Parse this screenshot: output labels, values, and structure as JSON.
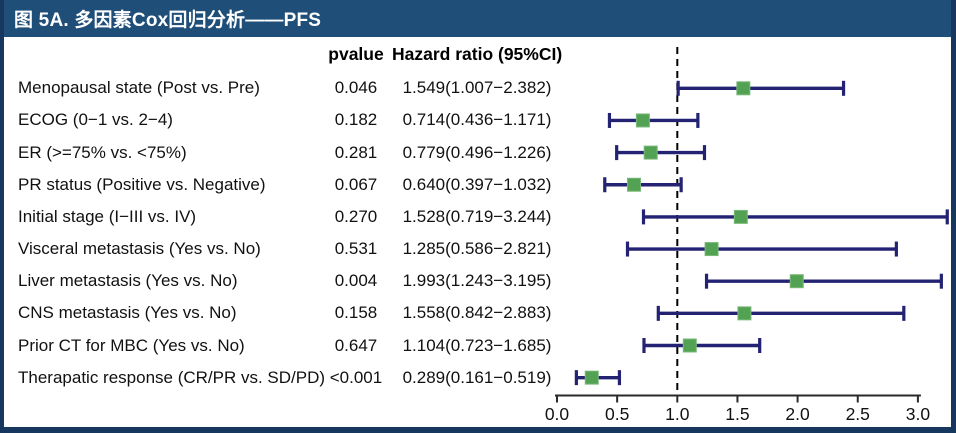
{
  "figure": {
    "title": "图 5A. 多因素Cox回归分析——PFS"
  },
  "table": {
    "col_pvalue": "pvalue",
    "col_hazard": "Hazard ratio (95%CI)",
    "rows": [
      {
        "label": "Menopausal state (Post vs. Pre)",
        "pvalue": "0.046",
        "hr_text": "1.549(1.007−2.382)"
      },
      {
        "label": "ECOG (0−1 vs. 2−4)",
        "pvalue": "0.182",
        "hr_text": "0.714(0.436−1.171)"
      },
      {
        "label": "ER (>=75% vs. <75%)",
        "pvalue": "0.281",
        "hr_text": "0.779(0.496−1.226)"
      },
      {
        "label": "PR status (Positive vs. Negative)",
        "pvalue": "0.067",
        "hr_text": "0.640(0.397−1.032)"
      },
      {
        "label": "Initial stage (I−III vs. IV)",
        "pvalue": "0.270",
        "hr_text": "1.528(0.719−3.244)"
      },
      {
        "label": "Visceral metastasis (Yes vs. No)",
        "pvalue": "0.531",
        "hr_text": "1.285(0.586−2.821)"
      },
      {
        "label": "Liver metastasis (Yes vs. No)",
        "pvalue": "0.004",
        "hr_text": "1.993(1.243−3.195)"
      },
      {
        "label": "CNS metastasis (Yes vs. No)",
        "pvalue": "0.158",
        "hr_text": "1.558(0.842−2.883)"
      },
      {
        "label": "Prior CT for MBC (Yes vs. No)",
        "pvalue": "0.647",
        "hr_text": "1.104(0.723−1.685)"
      },
      {
        "label": "Therapatic response (CR/PR vs. SD/PD)",
        "pvalue": "<0.001",
        "hr_text": "0.289(0.161−0.519)"
      }
    ]
  },
  "chart_data": {
    "type": "scatter",
    "variant": "forest-plot",
    "title": "图 5A. 多因素Cox回归分析——PFS",
    "xlabel": "",
    "xlim": [
      0.0,
      3.3
    ],
    "x_ticks": [
      0.0,
      0.5,
      1.0,
      1.5,
      2.0,
      2.5,
      3.0
    ],
    "x_tick_labels": [
      "0.0",
      "0.5",
      "1.0",
      "1.5",
      "2.0",
      "2.5",
      "3.0"
    ],
    "reference_line_x": 1.0,
    "points": [
      {
        "label": "Menopausal state (Post vs. Pre)",
        "pvalue": "0.046",
        "hr": 1.549,
        "ci_low": 1.007,
        "ci_high": 2.382
      },
      {
        "label": "ECOG (0−1 vs. 2−4)",
        "pvalue": "0.182",
        "hr": 0.714,
        "ci_low": 0.436,
        "ci_high": 1.171
      },
      {
        "label": "ER (>=75% vs. <75%)",
        "pvalue": "0.281",
        "hr": 0.779,
        "ci_low": 0.496,
        "ci_high": 1.226
      },
      {
        "label": "PR status (Positive vs. Negative)",
        "pvalue": "0.067",
        "hr": 0.64,
        "ci_low": 0.397,
        "ci_high": 1.032
      },
      {
        "label": "Initial stage (I−III vs. IV)",
        "pvalue": "0.270",
        "hr": 1.528,
        "ci_low": 0.719,
        "ci_high": 3.244
      },
      {
        "label": "Visceral metastasis (Yes vs. No)",
        "pvalue": "0.531",
        "hr": 1.285,
        "ci_low": 0.586,
        "ci_high": 2.821
      },
      {
        "label": "Liver metastasis (Yes vs. No)",
        "pvalue": "0.004",
        "hr": 1.993,
        "ci_low": 1.243,
        "ci_high": 3.195
      },
      {
        "label": "CNS metastasis (Yes vs. No)",
        "pvalue": "0.158",
        "hr": 1.558,
        "ci_low": 0.842,
        "ci_high": 2.883
      },
      {
        "label": "Prior CT for MBC (Yes vs. No)",
        "pvalue": "0.647",
        "hr": 1.104,
        "ci_low": 0.723,
        "ci_high": 1.685
      },
      {
        "label": "Therapatic response (CR/PR vs. SD/PD)",
        "pvalue": "<0.001",
        "hr": 0.289,
        "ci_low": 0.161,
        "ci_high": 0.519
      }
    ]
  },
  "colors": {
    "header_bg": "#1f4e79",
    "border": "#17375e",
    "error_bar": "#232273",
    "marker_fill": "#53a253",
    "marker_edge": "#7ab87a",
    "reference_line": "#000000",
    "axis": "#2a2a2a"
  }
}
